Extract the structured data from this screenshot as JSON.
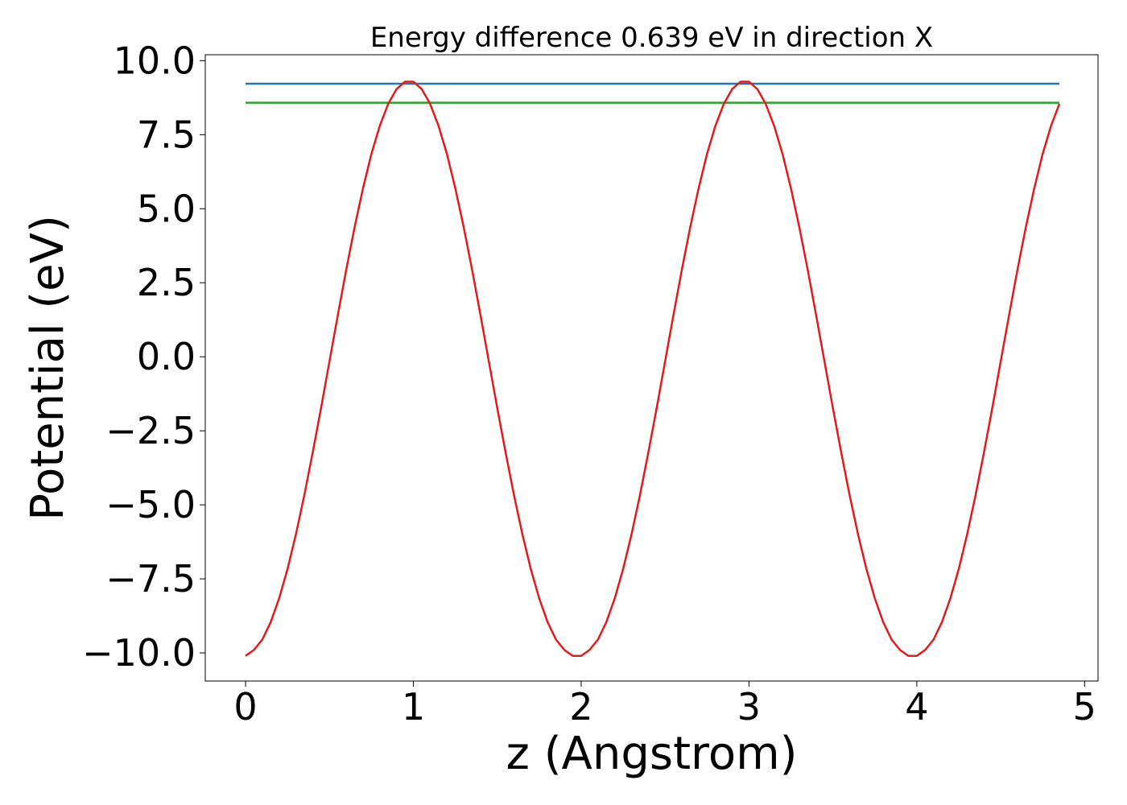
{
  "chart_data": {
    "type": "line",
    "title": "Energy difference 0.639 eV in direction X",
    "xlabel": "z (Angstrom)",
    "ylabel": "Potential (eV)",
    "xlim": [
      -0.24,
      5.08
    ],
    "ylim": [
      -10.95,
      10.2
    ],
    "x_ticks": [
      0,
      1,
      2,
      3,
      4,
      5
    ],
    "x_tick_labels": [
      "0",
      "1",
      "2",
      "3",
      "4",
      "5"
    ],
    "y_ticks": [
      10.0,
      7.5,
      5.0,
      2.5,
      0.0,
      -2.5,
      -5.0,
      -7.5,
      -10.0
    ],
    "y_tick_labels": [
      "10.0",
      "7.5",
      "5.0",
      "2.5",
      "0.0",
      "−2.5",
      "−5.0",
      "−7.5",
      "−10.0"
    ],
    "grid": false,
    "series": [
      {
        "color": "#1f77b4",
        "x": [
          0.0,
          4.85
        ],
        "y": [
          9.22,
          9.22
        ]
      },
      {
        "color": "#2ca02c",
        "x": [
          0.0,
          4.85
        ],
        "y": [
          8.58,
          8.58
        ]
      },
      {
        "color": "#e31a1c",
        "x": [
          0.0,
          0.05,
          0.1,
          0.15,
          0.2,
          0.25,
          0.3,
          0.35,
          0.4,
          0.45,
          0.5,
          0.55,
          0.6,
          0.65,
          0.7,
          0.75,
          0.8,
          0.85,
          0.9,
          0.95,
          1.0,
          1.05,
          1.1,
          1.15,
          1.2,
          1.25,
          1.3,
          1.35,
          1.4,
          1.45,
          1.5,
          1.55,
          1.6,
          1.65,
          1.7,
          1.75,
          1.8,
          1.85,
          1.9,
          1.95,
          2.0,
          2.05,
          2.1,
          2.15,
          2.2,
          2.25,
          2.3,
          2.35,
          2.4,
          2.45,
          2.5,
          2.55,
          2.6,
          2.65,
          2.7,
          2.75,
          2.8,
          2.85,
          2.9,
          2.95,
          3.0,
          3.05,
          3.1,
          3.15,
          3.2,
          3.25,
          3.3,
          3.35,
          3.4,
          3.45,
          3.5,
          3.55,
          3.6,
          3.65,
          3.7,
          3.75,
          3.8,
          3.85,
          3.9,
          3.95,
          4.0,
          4.05,
          4.1,
          4.15,
          4.2,
          4.25,
          4.3,
          4.35,
          4.4,
          4.45,
          4.5,
          4.55,
          4.6,
          4.65,
          4.7,
          4.75,
          4.8,
          4.85
        ],
        "y": [
          -10.1,
          -9.9,
          -9.55,
          -8.96,
          -8.16,
          -7.17,
          -6.0,
          -4.68,
          -3.24,
          -1.73,
          -0.16,
          1.41,
          2.94,
          4.38,
          5.69,
          6.85,
          7.8,
          8.54,
          9.04,
          9.29,
          9.29,
          9.04,
          8.54,
          7.8,
          6.85,
          5.69,
          4.38,
          2.94,
          1.41,
          -0.16,
          -1.73,
          -3.24,
          -4.68,
          -6.0,
          -7.17,
          -8.16,
          -8.96,
          -9.55,
          -9.9,
          -10.1,
          -10.1,
          -9.9,
          -9.55,
          -8.96,
          -8.16,
          -7.17,
          -6.0,
          -4.68,
          -3.24,
          -1.73,
          -0.16,
          1.41,
          2.94,
          4.38,
          5.69,
          6.85,
          7.8,
          8.54,
          9.04,
          9.29,
          9.29,
          9.04,
          8.54,
          7.8,
          6.85,
          5.69,
          4.38,
          2.94,
          1.41,
          -0.16,
          -1.73,
          -3.24,
          -4.68,
          -6.0,
          -7.17,
          -8.16,
          -8.96,
          -9.55,
          -9.9,
          -10.1,
          -10.1,
          -9.9,
          -9.55,
          -8.96,
          -8.16,
          -7.17,
          -6.0,
          -4.68,
          -3.24,
          -1.73,
          -0.16,
          1.41,
          2.94,
          4.38,
          5.69,
          6.85,
          7.8,
          8.54
        ]
      }
    ]
  }
}
